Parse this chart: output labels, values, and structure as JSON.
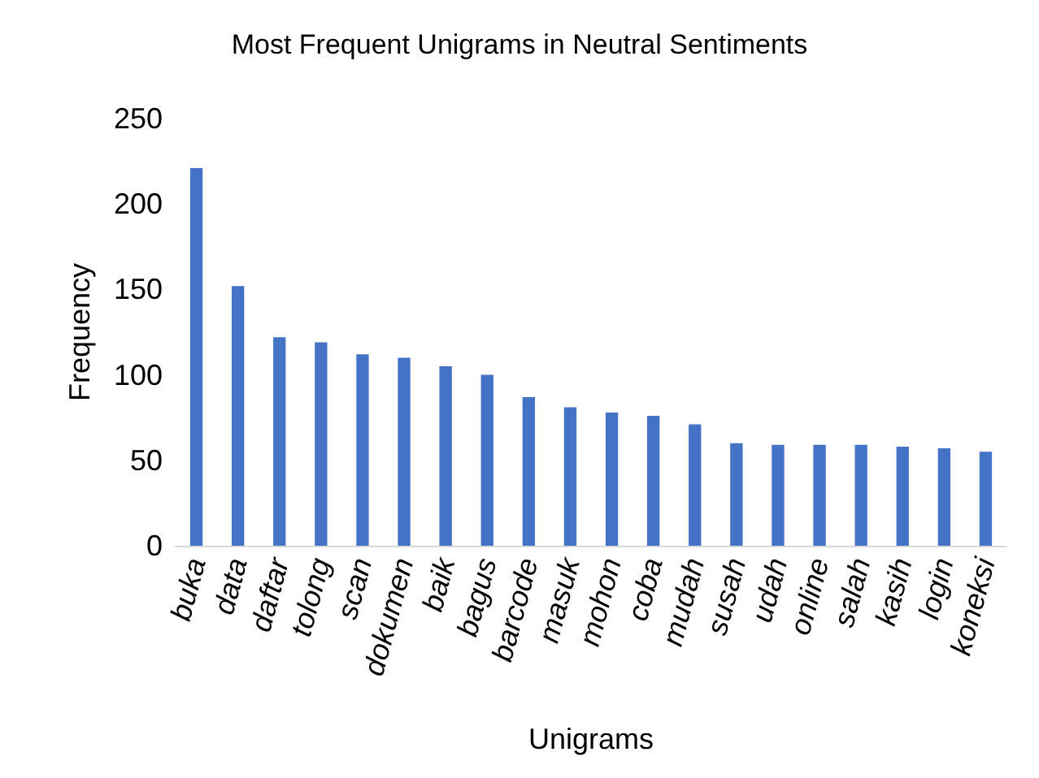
{
  "chart_data": {
    "type": "bar",
    "title": "Most Frequent Unigrams in Neutral Sentiments",
    "xlabel": "Unigrams",
    "ylabel": "Frequency",
    "categories": [
      "buka",
      "data",
      "daftar",
      "tolong",
      "scan",
      "dokumen",
      "baik",
      "bagus",
      "barcode",
      "masuk",
      "mohon",
      "coba",
      "mudah",
      "susah",
      "udah",
      "online",
      "salah",
      "kasih",
      "login",
      "koneksi"
    ],
    "values": [
      221,
      152,
      122,
      119,
      112,
      110,
      105,
      100,
      87,
      81,
      78,
      76,
      71,
      60,
      59,
      59,
      59,
      58,
      57,
      55
    ],
    "color": "#4472c4",
    "ylim": [
      0,
      250
    ],
    "yticks": [
      0,
      50,
      100,
      150,
      200,
      250
    ]
  }
}
